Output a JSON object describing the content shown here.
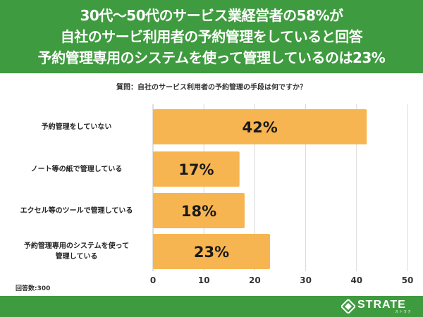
{
  "header": {
    "lines": [
      "30代〜50代のサービス業経営者の58%が",
      "自社のサービ利用者の予約管理をしていると回答",
      "予約管理専用のシステムを使って管理しているのは23%"
    ]
  },
  "colors": {
    "header_bg": "#3f9b3f",
    "bar": "#f7b551",
    "grid": "#d9d9d9",
    "text": "#222222"
  },
  "chart_data": {
    "type": "bar",
    "orientation": "horizontal",
    "title": "質問：自社のサービス利用者の予約管理の手段は何ですか？",
    "categories": [
      "予約管理をしていない",
      "ノート等の紙で管理している",
      "エクセル等のツールで管理している",
      "予約管理専用のシステムを使って管理している"
    ],
    "category_lines": [
      [
        "予約管理をしていない"
      ],
      [
        "ノート等の紙で管理している"
      ],
      [
        "エクセル等のツールで管理している"
      ],
      [
        "予約管理専用のシステムを使って",
        "管理している"
      ]
    ],
    "values": [
      42,
      17,
      18,
      23
    ],
    "value_labels": [
      "42%",
      "17%",
      "18%",
      "23%"
    ],
    "xlim": [
      0,
      50
    ],
    "xticks": [
      0,
      10,
      20,
      30,
      40,
      50
    ],
    "grid": true,
    "xlabel": "",
    "ylabel": ""
  },
  "note": "回答数:300",
  "brand": {
    "name": "STRATE",
    "sub": "ストラテ"
  }
}
